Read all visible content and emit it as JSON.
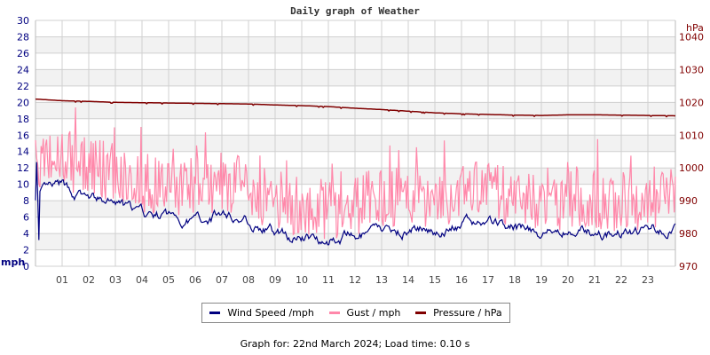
{
  "chart_data": {
    "type": "line",
    "title": "Daily graph of Weather",
    "xlabel": "",
    "ylabel": "mph",
    "ylabel_right": "hPa",
    "x_ticks": [
      "01",
      "02",
      "03",
      "04",
      "05",
      "06",
      "07",
      "08",
      "09",
      "10",
      "11",
      "12",
      "13",
      "14",
      "15",
      "16",
      "17",
      "18",
      "19",
      "20",
      "21",
      "22",
      "23"
    ],
    "y_ticks_left": [
      0,
      2,
      4,
      6,
      8,
      10,
      12,
      14,
      16,
      18,
      20,
      22,
      24,
      26,
      28,
      30
    ],
    "y_ticks_right": [
      970,
      980,
      990,
      1000,
      1010,
      1020,
      1030,
      1040
    ],
    "ylim": [
      0,
      30
    ],
    "ylim_right": [
      970,
      1045
    ],
    "grid": true,
    "legend_position": "bottom",
    "x_hours": [
      0,
      1,
      2,
      3,
      4,
      5,
      6,
      7,
      8,
      9,
      10,
      11,
      12,
      13,
      14,
      15,
      16,
      17,
      18,
      19,
      20,
      21,
      22,
      23,
      24
    ],
    "series": [
      {
        "name": "Wind Speed /mph",
        "color": "#000080",
        "axis": "left",
        "values": [
          8.5,
          9.5,
          8.0,
          7.5,
          6.0,
          6.0,
          5.5,
          6.5,
          5.5,
          4.0,
          3.5,
          3.5,
          3.5,
          4.0,
          4.5,
          4.5,
          5.0,
          5.5,
          4.5,
          4.0,
          4.5,
          4.0,
          4.0,
          4.5,
          5.0
        ]
      },
      {
        "name": "Gust / mph",
        "color": "#ff88aa",
        "axis": "left",
        "values": [
          12,
          13,
          12,
          11,
          10,
          10,
          9.5,
          10,
          9.5,
          8,
          7,
          7,
          7.5,
          8,
          8.5,
          8,
          9,
          9,
          8,
          7.5,
          8.5,
          8,
          7.5,
          8,
          9
        ]
      },
      {
        "name": "Pressure / hPa",
        "color": "#800000",
        "axis": "right",
        "values": [
          1021.0,
          1020.5,
          1020.3,
          1020.0,
          1019.9,
          1019.8,
          1019.7,
          1019.6,
          1019.5,
          1019.2,
          1019.0,
          1018.7,
          1018.2,
          1017.8,
          1017.3,
          1016.8,
          1016.5,
          1016.3,
          1016.1,
          1016.0,
          1016.2,
          1016.2,
          1016.1,
          1016.0,
          1015.9
        ]
      }
    ]
  },
  "header": {
    "title": "Daily graph of Weather"
  },
  "axes": {
    "left_unit": "mph",
    "right_unit": "hPa"
  },
  "legend": {
    "items": [
      {
        "label": "Wind Speed /mph",
        "color": "#000080"
      },
      {
        "label": "Gust / mph",
        "color": "#ff88aa"
      },
      {
        "label": "Pressure / hPa",
        "color": "#800000"
      }
    ]
  },
  "footer": {
    "text": "Graph for: 22nd March 2024; Load time: 0.10 s"
  },
  "colors": {
    "left_axis_text": "#000080",
    "right_axis_text": "#800000",
    "grid": "#d0d0d0",
    "band": "#f2f2f2"
  }
}
